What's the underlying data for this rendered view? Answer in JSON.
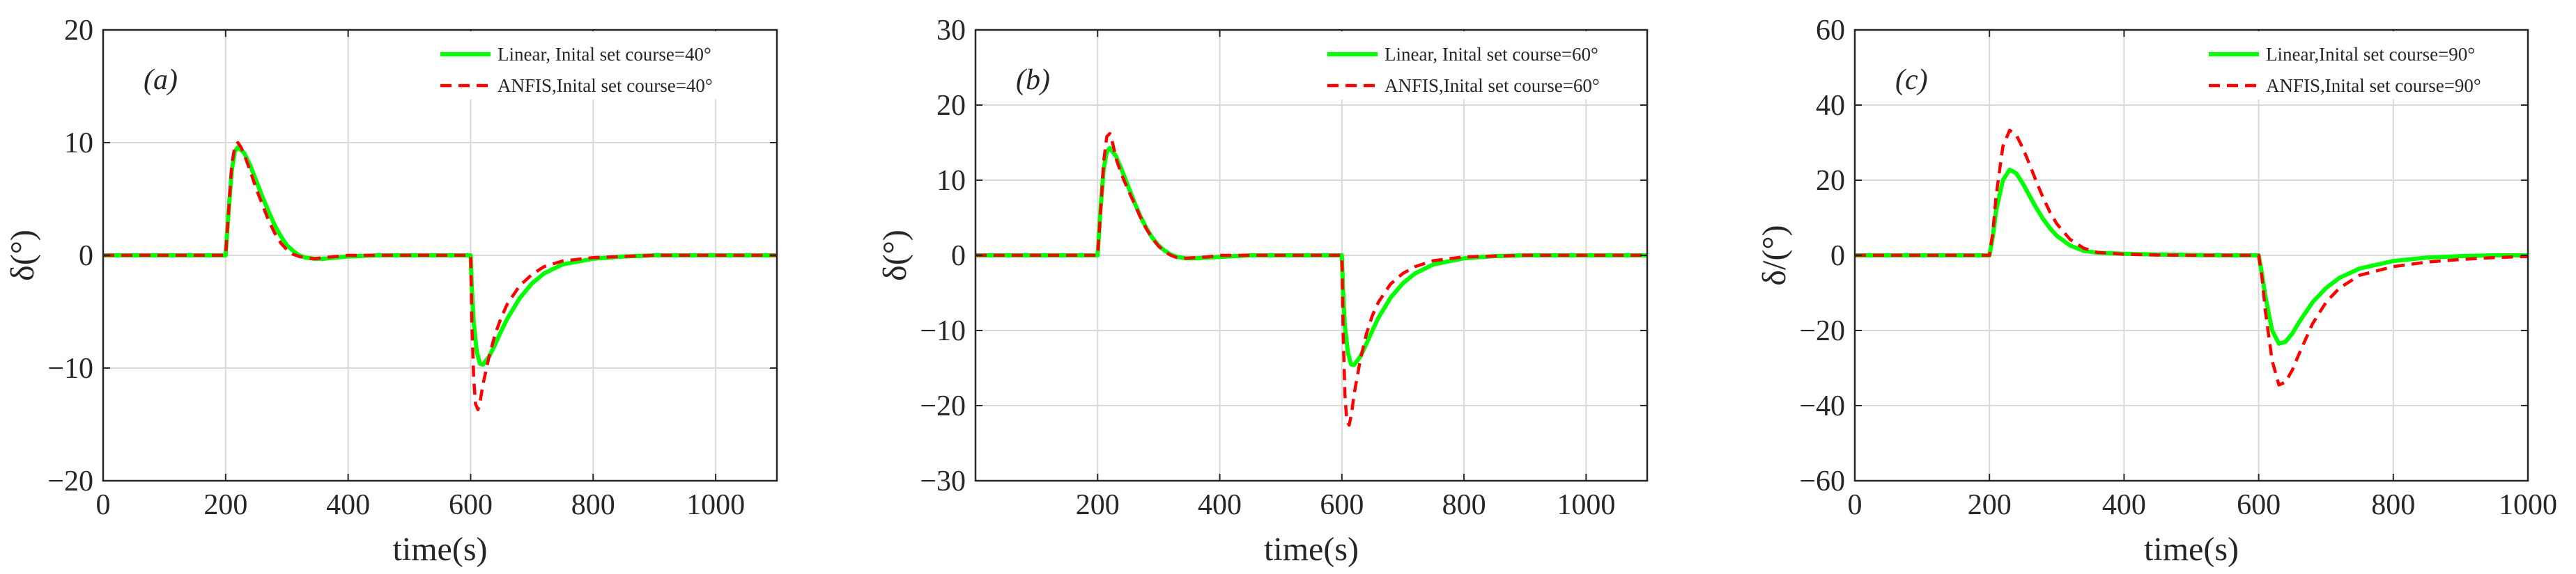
{
  "colors": {
    "linear": "#00ff00",
    "anfis": "#ff0000",
    "grid": "#d9d9d9",
    "axis": "#262626"
  },
  "chart_data": [
    {
      "type": "line",
      "panel_tag": "(a)",
      "xlabel": "time(s)",
      "ylabel": "δ(°)",
      "xlim": [
        0,
        1100
      ],
      "ylim": [
        -20,
        20
      ],
      "xticks": [
        0,
        200,
        400,
        600,
        800,
        1000
      ],
      "yticks": [
        -20,
        -10,
        0,
        10,
        20
      ],
      "xtick_labels": [
        "0",
        "200",
        "400",
        "600",
        "800",
        "1000"
      ],
      "ytick_labels": [
        "−20",
        "−10",
        "0",
        "10",
        "20"
      ],
      "grid": true,
      "legend_position": "top-right",
      "series": [
        {
          "name": "Linear, Inital set course=40°",
          "color": "#00ff00",
          "style": "solid",
          "x": [
            0,
            200,
            205,
            210,
            215,
            220,
            230,
            240,
            250,
            260,
            270,
            280,
            290,
            300,
            310,
            320,
            330,
            345,
            360,
            380,
            400,
            450,
            500,
            550,
            599,
            600,
            602,
            605,
            610,
            615,
            620,
            630,
            640,
            650,
            660,
            680,
            700,
            720,
            750,
            800,
            850,
            900,
            1000,
            1100
          ],
          "y": [
            0,
            0,
            4,
            7.5,
            9.2,
            9.6,
            9.1,
            8,
            6.6,
            5.2,
            3.9,
            2.7,
            1.7,
            0.9,
            0.4,
            0,
            -0.2,
            -0.3,
            -0.3,
            -0.2,
            -0.1,
            0,
            0,
            0,
            0,
            0,
            -3,
            -6,
            -8.5,
            -9.6,
            -9.7,
            -9,
            -7.9,
            -6.7,
            -5.6,
            -3.8,
            -2.5,
            -1.6,
            -0.8,
            -0.3,
            -0.1,
            0,
            0,
            0
          ]
        },
        {
          "name": "ANFIS,Inital set course=40°",
          "color": "#ff0000",
          "style": "dashed",
          "x": [
            0,
            200,
            205,
            210,
            215,
            220,
            225,
            230,
            240,
            250,
            260,
            270,
            280,
            290,
            300,
            310,
            320,
            330,
            345,
            360,
            380,
            400,
            450,
            500,
            550,
            599,
            600,
            602,
            605,
            608,
            612,
            616,
            620,
            630,
            640,
            650,
            660,
            680,
            700,
            720,
            750,
            800,
            850,
            900,
            1000,
            1100
          ],
          "y": [
            0,
            0,
            4,
            8,
            9.7,
            10,
            9.6,
            9,
            7.5,
            5.9,
            4.5,
            3.1,
            2,
            1.1,
            0.5,
            0.1,
            -0.1,
            -0.2,
            -0.3,
            -0.2,
            -0.1,
            0,
            0,
            0,
            0,
            0,
            0,
            -6,
            -11,
            -13.2,
            -13.7,
            -12.8,
            -11.5,
            -9,
            -7,
            -5.5,
            -4.3,
            -2.7,
            -1.7,
            -1,
            -0.5,
            -0.2,
            -0.1,
            0,
            0,
            0
          ]
        }
      ]
    },
    {
      "type": "line",
      "panel_tag": "(b)",
      "xlabel": "time(s)",
      "ylabel": "δ(°)",
      "xlim": [
        0,
        1100
      ],
      "ylim": [
        -30,
        30
      ],
      "xticks": [
        200,
        400,
        600,
        800,
        1000
      ],
      "yticks": [
        -30,
        -20,
        -10,
        0,
        10,
        20,
        30
      ],
      "xtick_labels": [
        "200",
        "400",
        "600",
        "800",
        "1000"
      ],
      "ytick_labels": [
        "−30",
        "−20",
        "−10",
        "0",
        "10",
        "20",
        "30"
      ],
      "grid": true,
      "legend_position": "top-right",
      "series": [
        {
          "name": "Linear, Inital set course=60°",
          "color": "#00ff00",
          "style": "solid",
          "x": [
            0,
            200,
            205,
            210,
            215,
            220,
            230,
            240,
            250,
            260,
            270,
            280,
            290,
            300,
            310,
            320,
            330,
            345,
            360,
            380,
            400,
            450,
            500,
            550,
            599,
            600,
            602,
            605,
            610,
            615,
            620,
            630,
            640,
            650,
            660,
            680,
            700,
            720,
            750,
            800,
            850,
            900,
            1000,
            1100
          ],
          "y": [
            0,
            0,
            6.5,
            11.5,
            13.8,
            14.3,
            13.2,
            11.3,
            9.2,
            7.1,
            5.2,
            3.6,
            2.3,
            1.3,
            0.6,
            0.1,
            -0.2,
            -0.4,
            -0.4,
            -0.3,
            -0.2,
            0,
            0,
            0,
            0,
            0,
            -5,
            -9.5,
            -13,
            -14.5,
            -14.6,
            -13.5,
            -11.8,
            -10,
            -8.3,
            -5.6,
            -3.7,
            -2.4,
            -1.2,
            -0.4,
            -0.1,
            0,
            0,
            0
          ]
        },
        {
          "name": "ANFIS,Inital set course=60°",
          "color": "#ff0000",
          "style": "dashed",
          "x": [
            0,
            200,
            205,
            210,
            215,
            220,
            225,
            230,
            240,
            250,
            260,
            270,
            280,
            290,
            300,
            310,
            320,
            330,
            345,
            360,
            380,
            400,
            450,
            500,
            550,
            599,
            600,
            602,
            605,
            608,
            612,
            616,
            620,
            630,
            640,
            650,
            660,
            680,
            700,
            720,
            750,
            800,
            850,
            900,
            1000,
            1100
          ],
          "y": [
            0,
            0,
            6,
            12.5,
            15.8,
            16.2,
            14.8,
            12.9,
            10.6,
            8.7,
            6.9,
            5.1,
            3.5,
            2.2,
            1.2,
            0.5,
            0,
            -0.3,
            -0.4,
            -0.3,
            -0.2,
            0,
            0,
            0,
            0,
            0,
            0,
            -10,
            -18.5,
            -22,
            -22.6,
            -21,
            -18.5,
            -14,
            -10.5,
            -8,
            -6.2,
            -3.8,
            -2.4,
            -1.5,
            -0.7,
            -0.2,
            -0.1,
            0,
            0,
            0
          ]
        }
      ]
    },
    {
      "type": "line",
      "panel_tag": "(c)",
      "xlabel": "time(s)",
      "ylabel": "δ/(°)",
      "xlim": [
        0,
        1000
      ],
      "ylim": [
        -60,
        60
      ],
      "xticks": [
        0,
        200,
        400,
        600,
        800,
        1000
      ],
      "yticks": [
        -60,
        -40,
        -20,
        0,
        20,
        40,
        60
      ],
      "xtick_labels": [
        "0",
        "200",
        "400",
        "600",
        "800",
        "1000"
      ],
      "ytick_labels": [
        "−60",
        "−40",
        "−20",
        "0",
        "20",
        "40",
        "60"
      ],
      "grid": true,
      "legend_position": "top-right",
      "series": [
        {
          "name": "Linear,Inital set course=90°",
          "color": "#00ff00",
          "style": "solid",
          "x": [
            0,
            200,
            205,
            210,
            220,
            230,
            240,
            250,
            260,
            270,
            280,
            290,
            300,
            320,
            340,
            360,
            400,
            450,
            500,
            550,
            599,
            600,
            605,
            610,
            620,
            630,
            640,
            650,
            660,
            680,
            700,
            720,
            750,
            800,
            850,
            900,
            950,
            1000
          ],
          "y": [
            0,
            0,
            5,
            12,
            20,
            22.8,
            21.8,
            19,
            15.7,
            12.5,
            9.6,
            7.2,
            5.2,
            2.6,
            1.2,
            0.7,
            0.4,
            0.2,
            0.1,
            0,
            0,
            0,
            -5,
            -11,
            -20,
            -23.5,
            -23,
            -20.8,
            -17.8,
            -12.5,
            -8.7,
            -6,
            -3.5,
            -1.5,
            -0.6,
            -0.2,
            0,
            0
          ]
        },
        {
          "name": "ANFIS,Inital set course=90°",
          "color": "#ff0000",
          "style": "dashed",
          "x": [
            0,
            200,
            205,
            210,
            220,
            230,
            240,
            250,
            260,
            270,
            280,
            290,
            300,
            320,
            340,
            360,
            400,
            450,
            500,
            550,
            599,
            600,
            605,
            610,
            620,
            630,
            640,
            650,
            660,
            680,
            700,
            720,
            750,
            800,
            850,
            900,
            950,
            1000
          ],
          "y": [
            0,
            0,
            6,
            16,
            29,
            33.3,
            32,
            28.4,
            24,
            19.5,
            15.2,
            11.5,
            8.4,
            4.2,
            1.9,
            0.8,
            0.3,
            0.1,
            0,
            0,
            0,
            0,
            -6,
            -15,
            -28,
            -34.5,
            -33.7,
            -30.5,
            -26.2,
            -18.2,
            -12.5,
            -8.7,
            -5.3,
            -3,
            -1.8,
            -1.1,
            -0.6,
            -0.3
          ]
        }
      ]
    }
  ]
}
